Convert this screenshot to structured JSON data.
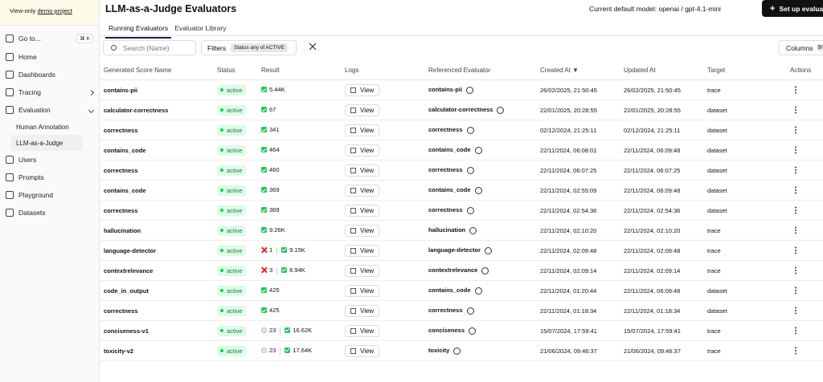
{
  "banner": {
    "text": "View-only",
    "link": "demo project"
  },
  "sidebar": {
    "goto": "Go to...",
    "shortcut": "⌘ K",
    "items": [
      {
        "label": "Home"
      },
      {
        "label": "Dashboards"
      },
      {
        "label": "Tracing",
        "chevron": "right"
      },
      {
        "label": "Evaluation",
        "chevron": "down"
      },
      {
        "label": "Human Annotation",
        "sub": true
      },
      {
        "label": "LLM-as-a-Judge",
        "sub": true,
        "selected": true
      },
      {
        "label": "Users"
      },
      {
        "label": "Prompts"
      },
      {
        "label": "Playground"
      },
      {
        "label": "Datasets"
      }
    ]
  },
  "header": {
    "title": "LLM-as-a-Judge Evaluators",
    "model": "Current default model: openai / gpt-4.1-mini",
    "button": "Set up evaluat"
  },
  "tabs": [
    {
      "label": "Running Evaluators",
      "active": true
    },
    {
      "label": "Evaluator Library"
    }
  ],
  "toolbar": {
    "search": "Search (Name)",
    "filters": "Filters",
    "filter_chip": "Status any of ACTIVE",
    "columns": "Columns",
    "columns_count": "9/"
  },
  "table": {
    "columns": [
      "Generated Score Name",
      "Status",
      "Result",
      "Logs",
      "Referenced Evaluator",
      "Created At ▼",
      "Updated At",
      "Target",
      "Actions"
    ],
    "rows": [
      {
        "name": "contains-pii",
        "status": "active",
        "result": [
          {
            "kind": "success",
            "count": "5.44K"
          }
        ],
        "logs": "View",
        "evaluator": "contains-pii",
        "created": "26/02/2025, 21:50:45",
        "updated": "26/02/2025, 21:50:45",
        "target": "trace"
      },
      {
        "name": "calculator-correctness",
        "status": "active",
        "result": [
          {
            "kind": "success",
            "count": "67"
          }
        ],
        "logs": "View",
        "evaluator": "calculator-correctness",
        "created": "22/01/2025, 20:28:55",
        "updated": "22/01/2025, 20:28:55",
        "target": "dataset"
      },
      {
        "name": "correctness",
        "status": "active",
        "result": [
          {
            "kind": "success",
            "count": "341"
          }
        ],
        "logs": "View",
        "evaluator": "correctness",
        "created": "02/12/2024, 21:25:11",
        "updated": "02/12/2024, 21:25:11",
        "target": "dataset"
      },
      {
        "name": "contains_code",
        "status": "active",
        "result": [
          {
            "kind": "success",
            "count": "464"
          }
        ],
        "logs": "View",
        "evaluator": "contains_code",
        "created": "22/11/2024, 06:08:01",
        "updated": "22/11/2024, 06:09:48",
        "target": "dataset"
      },
      {
        "name": "correctness",
        "status": "active",
        "result": [
          {
            "kind": "success",
            "count": "460"
          }
        ],
        "logs": "View",
        "evaluator": "correctness",
        "created": "22/11/2024, 06:07:25",
        "updated": "22/11/2024, 06:07:25",
        "target": "dataset"
      },
      {
        "name": "contains_code",
        "status": "active",
        "result": [
          {
            "kind": "success",
            "count": "369"
          }
        ],
        "logs": "View",
        "evaluator": "contains_code",
        "created": "22/11/2024, 02:55:09",
        "updated": "22/11/2024, 06:09:48",
        "target": "dataset"
      },
      {
        "name": "correctness",
        "status": "active",
        "result": [
          {
            "kind": "success",
            "count": "369"
          }
        ],
        "logs": "View",
        "evaluator": "correctness",
        "created": "22/11/2024, 02:54:36",
        "updated": "22/11/2024, 02:54:36",
        "target": "dataset"
      },
      {
        "name": "hallucination",
        "status": "active",
        "result": [
          {
            "kind": "success",
            "count": "9.26K"
          }
        ],
        "logs": "View",
        "evaluator": "hallucination",
        "created": "22/11/2024, 02:10:20",
        "updated": "22/11/2024, 02:10:20",
        "target": "trace"
      },
      {
        "name": "language-detector",
        "status": "active",
        "result": [
          {
            "kind": "error",
            "count": "1"
          },
          {
            "kind": "success",
            "count": "9.15K"
          }
        ],
        "logs": "View",
        "evaluator": "language-detector",
        "created": "22/11/2024, 02:09:48",
        "updated": "22/11/2024, 02:09:48",
        "target": "trace"
      },
      {
        "name": "contextrelevance",
        "status": "active",
        "result": [
          {
            "kind": "error",
            "count": "3"
          },
          {
            "kind": "success",
            "count": "8.94K"
          }
        ],
        "logs": "View",
        "evaluator": "contextrelevance",
        "created": "22/11/2024, 02:09:14",
        "updated": "22/11/2024, 02:09:14",
        "target": "trace"
      },
      {
        "name": "code_in_output",
        "status": "active",
        "result": [
          {
            "kind": "success",
            "count": "425"
          }
        ],
        "logs": "View",
        "evaluator": "contains_code",
        "created": "22/11/2024, 01:20:44",
        "updated": "22/11/2024, 06:09:48",
        "target": "dataset"
      },
      {
        "name": "correctness",
        "status": "active",
        "result": [
          {
            "kind": "success",
            "count": "425"
          }
        ],
        "logs": "View",
        "evaluator": "correctness",
        "created": "22/11/2024, 01:18:34",
        "updated": "22/11/2024, 01:18:34",
        "target": "dataset"
      },
      {
        "name": "conciseness-v1",
        "status": "active",
        "result": [
          {
            "kind": "pending",
            "count": "23"
          },
          {
            "kind": "success",
            "count": "16.62K"
          }
        ],
        "logs": "View",
        "evaluator": "conciseness",
        "created": "15/07/2024, 17:59:41",
        "updated": "15/07/2024, 17:59:41",
        "target": "trace"
      },
      {
        "name": "toxicity-v2",
        "status": "active",
        "result": [
          {
            "kind": "pending",
            "count": "23"
          },
          {
            "kind": "success",
            "count": "17.64K"
          }
        ],
        "logs": "View",
        "evaluator": "toxicity",
        "created": "21/06/2024, 09:46:37",
        "updated": "21/06/2024, 09:46:37",
        "target": "trace"
      }
    ]
  }
}
